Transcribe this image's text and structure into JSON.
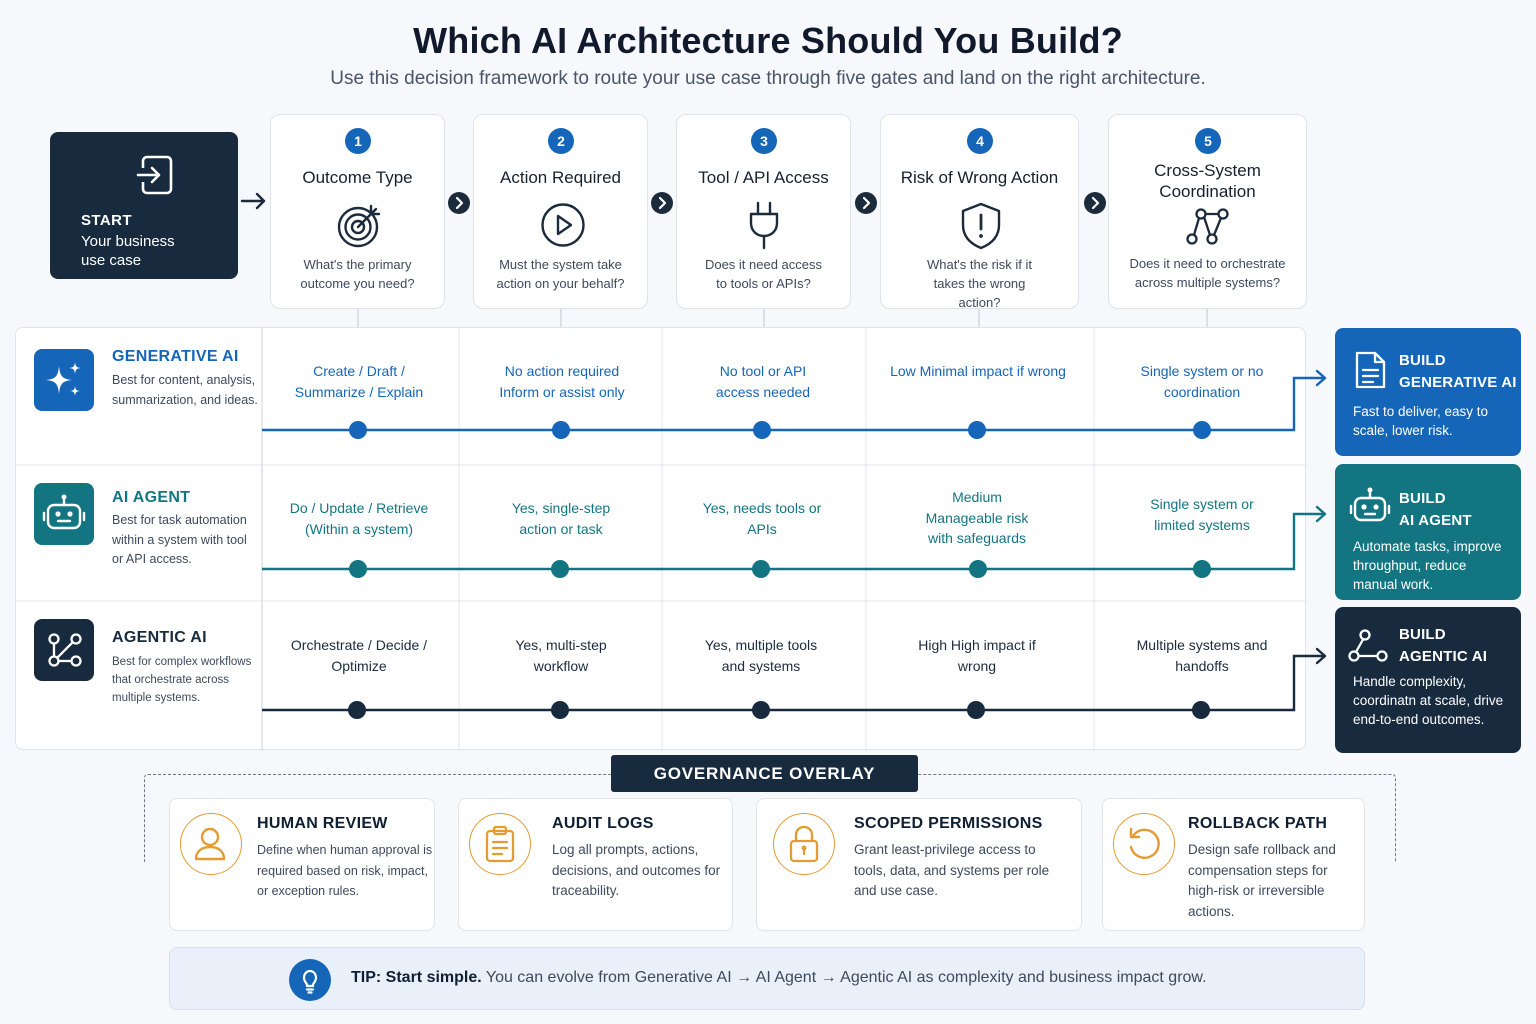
{
  "header": {
    "title": "Which AI Architecture Should You Build?",
    "subtitle": "Use this decision framework to route your use case through five gates and land on the right architecture."
  },
  "start": {
    "label": "START",
    "description": "Your business use case",
    "icon": "enter-icon"
  },
  "gates": [
    {
      "number": "1",
      "title": "Outcome Type",
      "question": "What's the primary outcome you need?",
      "icon": "target-icon"
    },
    {
      "number": "2",
      "title": "Action Required",
      "question": "Must the system take action on your behalf?",
      "icon": "play-icon"
    },
    {
      "number": "3",
      "title": "Tool / API Access",
      "question": "Does it need access to tools or APIs?",
      "icon": "plug-icon"
    },
    {
      "number": "4",
      "title": "Risk of Wrong Action",
      "question": "What's the risk if it takes the wrong action?",
      "icon": "shield-alert-icon"
    },
    {
      "number": "5",
      "title": "Cross-System Coordination",
      "question": "Does it need to orchestrate across multiple systems?",
      "icon": "network-icon"
    }
  ],
  "architectures": [
    {
      "name": "GENERATIVE AI",
      "description": "Best for content, analysis, summarization, and ideas.",
      "color": "#1565b8",
      "icon": "sparkles-icon",
      "cells": [
        "Create / Draft / Summarize / Explain",
        "No action required Inform or assist only",
        "No tool or API access needed",
        "Low Minimal impact if wrong",
        "Single system or no coordination"
      ],
      "build": {
        "prefix": "BUILD",
        "title": "GENERATIVE AI",
        "description": "Fast to deliver, easy to scale, lower risk.",
        "icon": "document-icon"
      }
    },
    {
      "name": "AI AGENT",
      "description": "Best for task automation within a system with tool or API access.",
      "color": "#137582",
      "icon": "robot-icon",
      "cells": [
        "Do / Update / Retrieve (Within a system)",
        "Yes, single-step action or task",
        "Yes, needs tools or APIs",
        "Medium Manageable risk with safeguards",
        "Single system or limited systems"
      ],
      "build": {
        "prefix": "BUILD",
        "title": "AI AGENT",
        "description": "Automate tasks, improve throughput, reduce manual work.",
        "icon": "robot-icon"
      }
    },
    {
      "name": "AGENTIC AI",
      "description": "Best for complex workflows that orchestrate across multiple systems.",
      "color": "#172a3e",
      "icon": "workflow-icon",
      "cells": [
        "Orchestrate / Decide / Optimize",
        "Yes, multi-step workflow",
        "Yes, multiple tools and systems",
        "High High impact if wrong",
        "Multiple systems and handoffs"
      ],
      "build": {
        "prefix": "BUILD",
        "title": "AGENTIC AI",
        "description": "Handle complexity, coordinatn at scale, drive end-to-end outcomes.",
        "icon": "workflow-icon"
      }
    }
  ],
  "governance": {
    "label": "GOVERNANCE OVERLAY",
    "items": [
      {
        "title": "HUMAN REVIEW",
        "description": "Define when human approval is required based on risk, impact, or exception rules.",
        "icon": "person-icon"
      },
      {
        "title": "AUDIT LOGS",
        "description": "Log all prompts, actions, decisions, and outcomes for traceability.",
        "icon": "clipboard-icon"
      },
      {
        "title": "SCOPED PERMISSIONS",
        "description": "Grant least-privilege access to tools, data, and systems per role and use case.",
        "icon": "lock-icon"
      },
      {
        "title": "ROLLBACK PATH",
        "description": "Design safe rollback and compensation steps for high-risk or irreversible actions.",
        "icon": "rollback-icon"
      }
    ],
    "accent": "#e39b32"
  },
  "tip": {
    "lead": "TIP: Start simple.",
    "text": "You can evolve from Generative AI → AI Agent → Agentic AI as complexity and business impact grow.",
    "icon": "lightbulb-icon"
  }
}
